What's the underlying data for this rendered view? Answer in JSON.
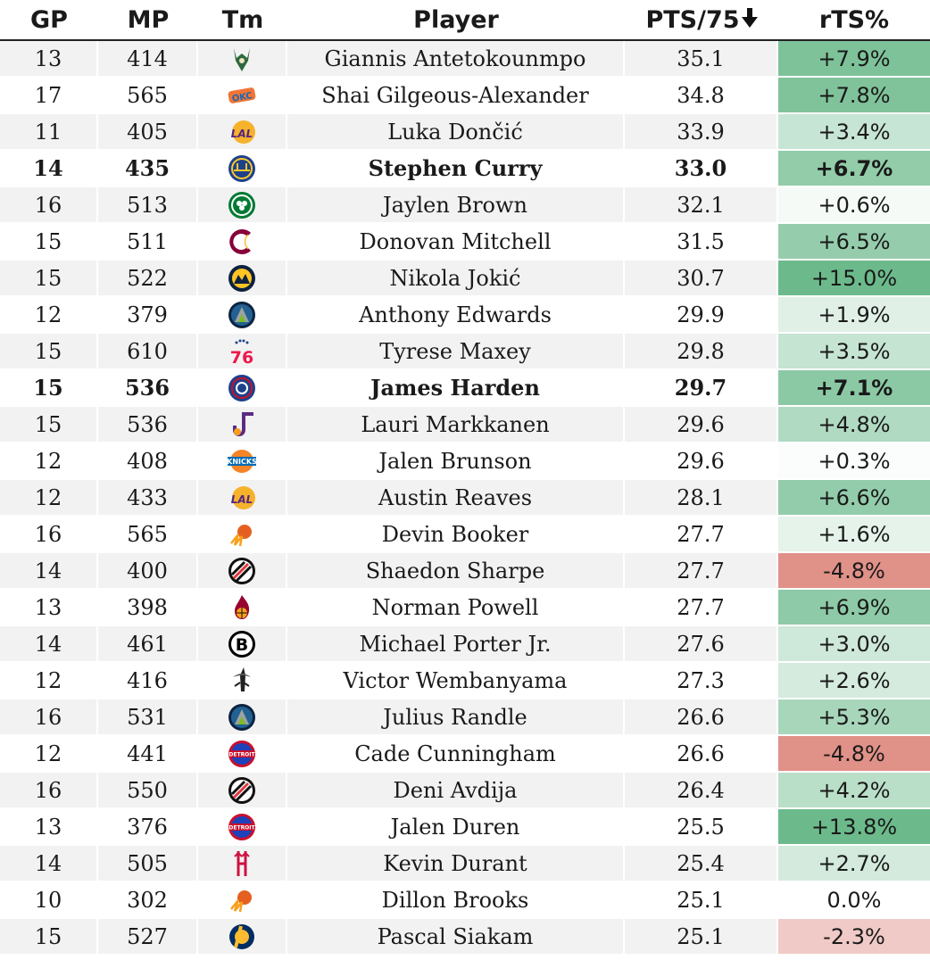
{
  "headers": {
    "gp": "GP",
    "mp": "MP",
    "tm": "Tm",
    "player": "Player",
    "pts": "PTS/75",
    "sort_icon": "down-arrow-icon",
    "rts": "rTS%"
  },
  "colors": {
    "positive_strong": "#6cba8c",
    "negative_strong": "#df8c83",
    "neutral": "#ffffff"
  },
  "rows": [
    {
      "gp": "13",
      "mp": "414",
      "team": "MIL",
      "player": "Giannis Antetokounmpo",
      "pts": "35.1",
      "rts": "+7.9%",
      "rts_value": 7.9,
      "bold": false
    },
    {
      "gp": "17",
      "mp": "565",
      "team": "OKC",
      "player": "Shai Gilgeous-Alexander",
      "pts": "34.8",
      "rts": "+7.8%",
      "rts_value": 7.8,
      "bold": false
    },
    {
      "gp": "11",
      "mp": "405",
      "team": "LAL",
      "player": "Luka Dončić",
      "pts": "33.9",
      "rts": "+3.4%",
      "rts_value": 3.4,
      "bold": false
    },
    {
      "gp": "14",
      "mp": "435",
      "team": "GSW",
      "player": "Stephen Curry",
      "pts": "33.0",
      "rts": "+6.7%",
      "rts_value": 6.7,
      "bold": true
    },
    {
      "gp": "16",
      "mp": "513",
      "team": "BOS",
      "player": "Jaylen Brown",
      "pts": "32.1",
      "rts": "+0.6%",
      "rts_value": 0.6,
      "bold": false
    },
    {
      "gp": "15",
      "mp": "511",
      "team": "CLE",
      "player": "Donovan Mitchell",
      "pts": "31.5",
      "rts": "+6.5%",
      "rts_value": 6.5,
      "bold": false
    },
    {
      "gp": "15",
      "mp": "522",
      "team": "DEN",
      "player": "Nikola Jokić",
      "pts": "30.7",
      "rts": "+15.0%",
      "rts_value": 15.0,
      "bold": false
    },
    {
      "gp": "12",
      "mp": "379",
      "team": "MIN",
      "player": "Anthony Edwards",
      "pts": "29.9",
      "rts": "+1.9%",
      "rts_value": 1.9,
      "bold": false
    },
    {
      "gp": "15",
      "mp": "610",
      "team": "PHI",
      "player": "Tyrese Maxey",
      "pts": "29.8",
      "rts": "+3.5%",
      "rts_value": 3.5,
      "bold": false
    },
    {
      "gp": "15",
      "mp": "536",
      "team": "LAC",
      "player": "James Harden",
      "pts": "29.7",
      "rts": "+7.1%",
      "rts_value": 7.1,
      "bold": true
    },
    {
      "gp": "15",
      "mp": "536",
      "team": "UTA",
      "player": "Lauri Markkanen",
      "pts": "29.6",
      "rts": "+4.8%",
      "rts_value": 4.8,
      "bold": false
    },
    {
      "gp": "12",
      "mp": "408",
      "team": "NYK",
      "player": "Jalen Brunson",
      "pts": "29.6",
      "rts": "+0.3%",
      "rts_value": 0.3,
      "bold": false
    },
    {
      "gp": "12",
      "mp": "433",
      "team": "LAL",
      "player": "Austin Reaves",
      "pts": "28.1",
      "rts": "+6.6%",
      "rts_value": 6.6,
      "bold": false
    },
    {
      "gp": "16",
      "mp": "565",
      "team": "PHX",
      "player": "Devin Booker",
      "pts": "27.7",
      "rts": "+1.6%",
      "rts_value": 1.6,
      "bold": false
    },
    {
      "gp": "14",
      "mp": "400",
      "team": "POR",
      "player": "Shaedon Sharpe",
      "pts": "27.7",
      "rts": "-4.8%",
      "rts_value": -4.8,
      "bold": false
    },
    {
      "gp": "13",
      "mp": "398",
      "team": "MIA",
      "player": "Norman Powell",
      "pts": "27.7",
      "rts": "+6.9%",
      "rts_value": 6.9,
      "bold": false
    },
    {
      "gp": "14",
      "mp": "461",
      "team": "BKN",
      "player": "Michael Porter Jr.",
      "pts": "27.6",
      "rts": "+3.0%",
      "rts_value": 3.0,
      "bold": false
    },
    {
      "gp": "12",
      "mp": "416",
      "team": "SAS",
      "player": "Victor Wembanyama",
      "pts": "27.3",
      "rts": "+2.6%",
      "rts_value": 2.6,
      "bold": false
    },
    {
      "gp": "16",
      "mp": "531",
      "team": "MIN",
      "player": "Julius Randle",
      "pts": "26.6",
      "rts": "+5.3%",
      "rts_value": 5.3,
      "bold": false
    },
    {
      "gp": "12",
      "mp": "441",
      "team": "DET",
      "player": "Cade Cunningham",
      "pts": "26.6",
      "rts": "-4.8%",
      "rts_value": -4.8,
      "bold": false
    },
    {
      "gp": "16",
      "mp": "550",
      "team": "POR",
      "player": "Deni Avdija",
      "pts": "26.4",
      "rts": "+4.2%",
      "rts_value": 4.2,
      "bold": false
    },
    {
      "gp": "13",
      "mp": "376",
      "team": "DET",
      "player": "Jalen Duren",
      "pts": "25.5",
      "rts": "+13.8%",
      "rts_value": 13.8,
      "bold": false
    },
    {
      "gp": "14",
      "mp": "505",
      "team": "HOU",
      "player": "Kevin Durant",
      "pts": "25.4",
      "rts": "+2.7%",
      "rts_value": 2.7,
      "bold": false
    },
    {
      "gp": "10",
      "mp": "302",
      "team": "PHX",
      "player": "Dillon Brooks",
      "pts": "25.1",
      "rts": "0.0%",
      "rts_value": 0.0,
      "bold": false
    },
    {
      "gp": "15",
      "mp": "527",
      "team": "IND",
      "player": "Pascal Siakam",
      "pts": "25.1",
      "rts": "-2.3%",
      "rts_value": -2.3,
      "bold": false
    }
  ]
}
